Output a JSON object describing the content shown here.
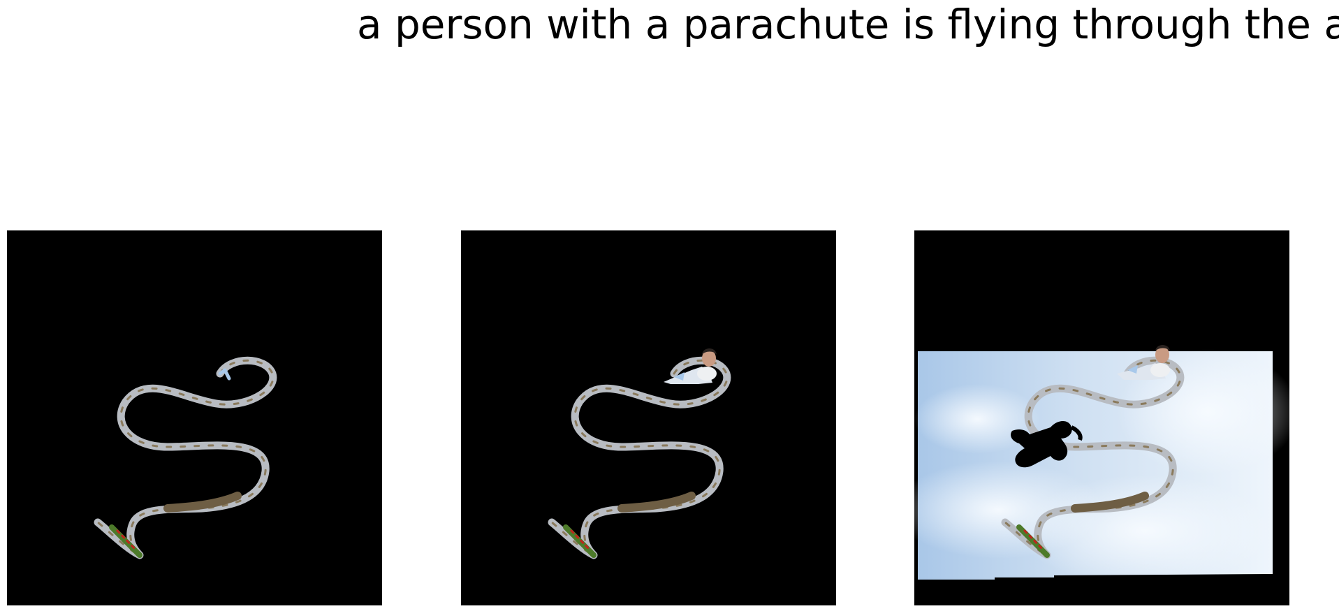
{
  "caption": "a person with a parachute is flying through the air",
  "panels": [
    {
      "id": "panel-1",
      "content": "mask-ribbon"
    },
    {
      "id": "panel-2",
      "content": "mask-ribbon-with-person"
    },
    {
      "id": "panel-3",
      "content": "full-scene-sky"
    }
  ],
  "colors": {
    "background": "#ffffff",
    "panel_fill": "#000000",
    "ribbon": "#b8bcc2",
    "ribbon_dark": "#7a6a4e",
    "sky_light": "#e9f2fb",
    "sky_blue": "#a9c7e8"
  }
}
